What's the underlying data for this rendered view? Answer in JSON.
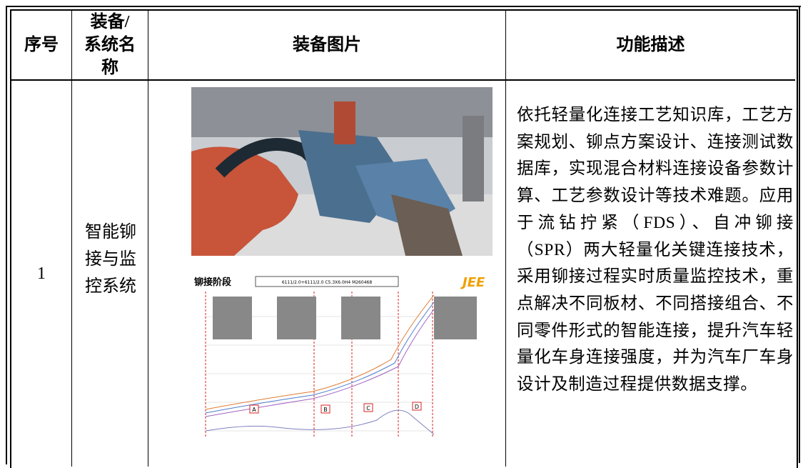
{
  "table": {
    "header": [
      "序号",
      "装备/系统名称",
      "装备图片",
      "功能描述"
    ],
    "rows": [
      {
        "index": "1",
        "name": "智能铆接与监控系统",
        "description": "依托轻量化连接工艺知识库，工艺方案规划、铆点方案设计、连接测试数据库，实现混合材料连接设备参数计算、工艺参数设计等技术难题。应用于流钻拧紧（FDS）、自冲铆接（SPR）两大轻量化关键连接技术，采用铆接过程实时质量监控技术，重点解决不同板材、不同搭接组合、不同零件形式的智能连接，提升汽车轻量化车身连接强度，并为汽车厂车身设计及制造过程提供数据支撑。"
      }
    ]
  },
  "chart_image": {
    "title": "铆接阶段",
    "spec": "6111/2.0+6111/2.0 C5.3X6.0H4 M260468",
    "logo": "JEE",
    "stages": [
      "A",
      "B",
      "C",
      "D"
    ]
  }
}
